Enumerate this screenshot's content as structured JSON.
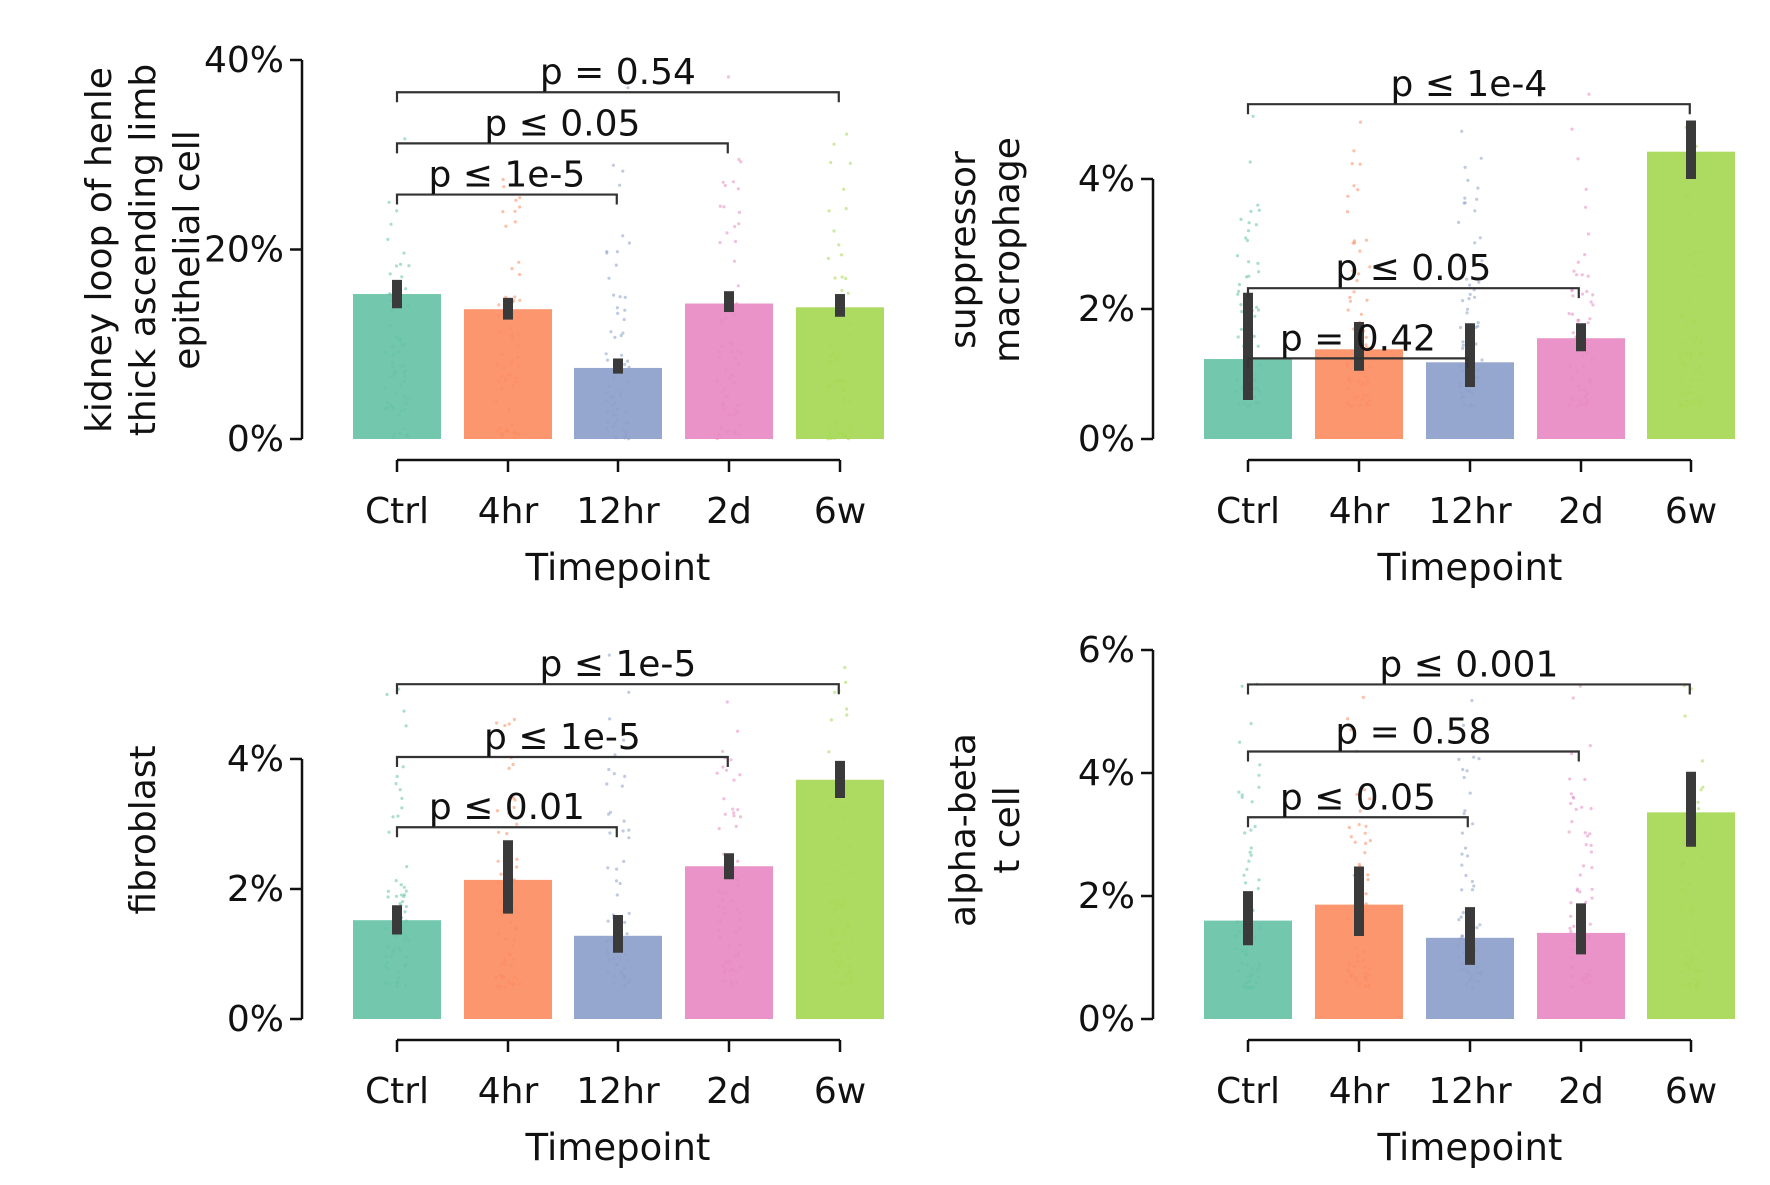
{
  "colors": [
    "#66c2a5",
    "#fc8d62",
    "#8da0cb",
    "#e78ac3",
    "#a6d854"
  ],
  "chart_data": [
    {
      "type": "bar",
      "ylabel_lines": [
        "kidney loop of henle",
        "thick ascending limb",
        "epithelial cell"
      ],
      "xlabel": "Timepoint",
      "categories": [
        "Ctrl",
        "4hr",
        "12hr",
        "2d",
        "6w"
      ],
      "values": [
        15.3,
        13.7,
        7.5,
        14.3,
        13.9
      ],
      "errors": [
        [
          13.8,
          16.8
        ],
        [
          12.6,
          14.9
        ],
        [
          6.9,
          8.5
        ],
        [
          13.4,
          15.6
        ],
        [
          12.9,
          15.3
        ]
      ],
      "ylim": [
        0,
        40
      ],
      "yticks": [
        0,
        20,
        40
      ],
      "ytick_labels": [
        "0%",
        "20%",
        "40%"
      ],
      "points_range": [
        0,
        40
      ],
      "brackets": [
        {
          "from": 0,
          "to": 1.98,
          "y": 25.8,
          "label": "p ≤ 1e-5"
        },
        {
          "from": 0,
          "to": 2.98,
          "y": 31.2,
          "label": "p ≤ 0.05"
        },
        {
          "from": 0,
          "to": 3.98,
          "y": 36.6,
          "label": "p = 0.54"
        }
      ]
    },
    {
      "type": "bar",
      "ylabel_lines": [
        "suppressor",
        "macrophage"
      ],
      "xlabel": "Timepoint",
      "categories": [
        "Ctrl",
        "4hr",
        "12hr",
        "2d",
        "6w"
      ],
      "values": [
        1.23,
        1.38,
        1.18,
        1.55,
        4.42
      ],
      "errors": [
        [
          0.6,
          2.25
        ],
        [
          1.05,
          1.8
        ],
        [
          0.8,
          1.78
        ],
        [
          1.35,
          1.78
        ],
        [
          4.0,
          4.9
        ]
      ],
      "ylim": [
        0,
        5.83
      ],
      "yticks": [
        0,
        2,
        4
      ],
      "ytick_labels": [
        "0%",
        "2%",
        "4%"
      ],
      "points_range": [
        0.5,
        5.83
      ],
      "brackets": [
        {
          "from": 0,
          "to": 1.98,
          "y": 1.24,
          "label": "p = 0.42"
        },
        {
          "from": 0,
          "to": 2.98,
          "y": 2.32,
          "label": "p ≤ 0.05"
        },
        {
          "from": 0,
          "to": 3.98,
          "y": 5.15,
          "label": "p ≤ 1e-4"
        }
      ]
    },
    {
      "type": "bar",
      "ylabel_lines": [
        "fibroblast"
      ],
      "xlabel": "Timepoint",
      "categories": [
        "Ctrl",
        "4hr",
        "12hr",
        "2d",
        "6w"
      ],
      "values": [
        1.52,
        2.14,
        1.28,
        2.35,
        3.68
      ],
      "errors": [
        [
          1.3,
          1.75
        ],
        [
          1.62,
          2.75
        ],
        [
          1.02,
          1.6
        ],
        [
          2.15,
          2.55
        ],
        [
          3.4,
          3.97
        ]
      ],
      "ylim": [
        0,
        5.83
      ],
      "yticks": [
        0,
        2,
        4
      ],
      "ytick_labels": [
        "0%",
        "2%",
        "4%"
      ],
      "points_range": [
        0.5,
        5.83
      ],
      "brackets": [
        {
          "from": 0,
          "to": 1.98,
          "y": 2.95,
          "label": "p ≤ 0.01"
        },
        {
          "from": 0,
          "to": 2.98,
          "y": 4.03,
          "label": "p ≤ 1e-5"
        },
        {
          "from": 0,
          "to": 3.98,
          "y": 5.15,
          "label": "p ≤ 1e-5"
        }
      ]
    },
    {
      "type": "bar",
      "ylabel_lines": [
        "alpha-beta",
        "t cell"
      ],
      "xlabel": "Timepoint",
      "categories": [
        "Ctrl",
        "4hr",
        "12hr",
        "2d",
        "6w"
      ],
      "values": [
        1.6,
        1.86,
        1.32,
        1.4,
        3.36
      ],
      "errors": [
        [
          1.2,
          2.08
        ],
        [
          1.35,
          2.48
        ],
        [
          0.88,
          1.82
        ],
        [
          1.05,
          1.88
        ],
        [
          2.8,
          4.02
        ]
      ],
      "ylim": [
        0,
        6
      ],
      "yticks": [
        0,
        2,
        4,
        6
      ],
      "ytick_labels": [
        "0%",
        "2%",
        "4%",
        "6%"
      ],
      "points_range": [
        0.5,
        6.1
      ],
      "brackets": [
        {
          "from": 0,
          "to": 1.98,
          "y": 3.28,
          "label": "p ≤ 0.05"
        },
        {
          "from": 0,
          "to": 2.98,
          "y": 4.35,
          "label": "p = 0.58"
        },
        {
          "from": 0,
          "to": 3.98,
          "y": 5.44,
          "label": "p ≤ 0.001"
        }
      ]
    }
  ]
}
